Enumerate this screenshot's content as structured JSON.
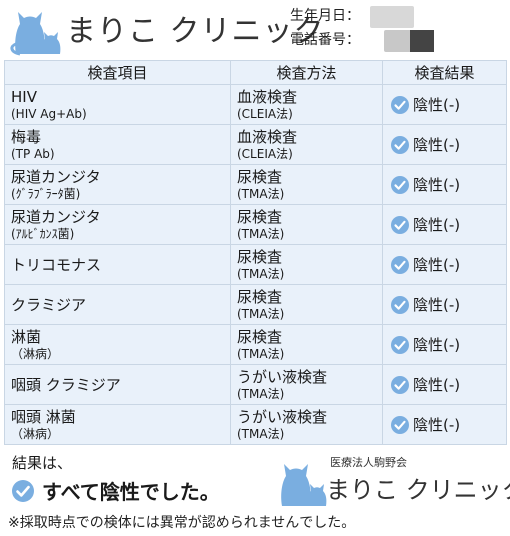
{
  "header": {
    "clinic_name": "まりこ クリニック",
    "birth_label": "生年月日：",
    "phone_label": "電話番号："
  },
  "table": {
    "headers": [
      "検査項目",
      "検査方法",
      "検査結果"
    ],
    "rows": [
      {
        "item": "HIV",
        "item_sub": "(HIV Ag+Ab)",
        "method": "血液検査",
        "method_sub": "(CLEIA法)",
        "result": "陰性(-)"
      },
      {
        "item": "梅毒",
        "item_sub": "(TP Ab)",
        "method": "血液検査",
        "method_sub": "(CLEIA法)",
        "result": "陰性(-)"
      },
      {
        "item": "尿道カンジタ",
        "item_sub": "(ｸﾞﾗﾌﾞﾗｰﾀ菌)",
        "method": "尿検査",
        "method_sub": "(TMA法)",
        "result": "陰性(-)"
      },
      {
        "item": "尿道カンジタ",
        "item_sub": "(ｱﾙﾋﾞｶﾝｽ菌)",
        "method": "尿検査",
        "method_sub": "(TMA法)",
        "result": "陰性(-)"
      },
      {
        "item": "トリコモナス",
        "item_sub": "",
        "method": "尿検査",
        "method_sub": "(TMA法)",
        "result": "陰性(-)"
      },
      {
        "item": "クラミジア",
        "item_sub": "",
        "method": "尿検査",
        "method_sub": "(TMA法)",
        "result": "陰性(-)"
      },
      {
        "item": "淋菌",
        "item_sub": "（淋病）",
        "method": "尿検査",
        "method_sub": "(TMA法)",
        "result": "陰性(-)"
      },
      {
        "item": "咽頭 クラミジア",
        "item_sub": "",
        "method": "うがい液検査",
        "method_sub": "(TMA法)",
        "result": "陰性(-)"
      },
      {
        "item": "咽頭 淋菌",
        "item_sub": "（淋病）",
        "method": "うがい液検査",
        "method_sub": "(TMA法)",
        "result": "陰性(-)"
      }
    ]
  },
  "footer": {
    "result_label": "結果は、",
    "result_text": "すべて陰性でした。",
    "corp_label": "医療法人駒野会",
    "clinic_name": "まりこ クリニック",
    "note": "※採取時点での検体には異常が認められませんでした。"
  },
  "colors": {
    "accent": "#7aaee0",
    "table_bg": "#e9f1fa",
    "border": "#c9d6e4"
  }
}
